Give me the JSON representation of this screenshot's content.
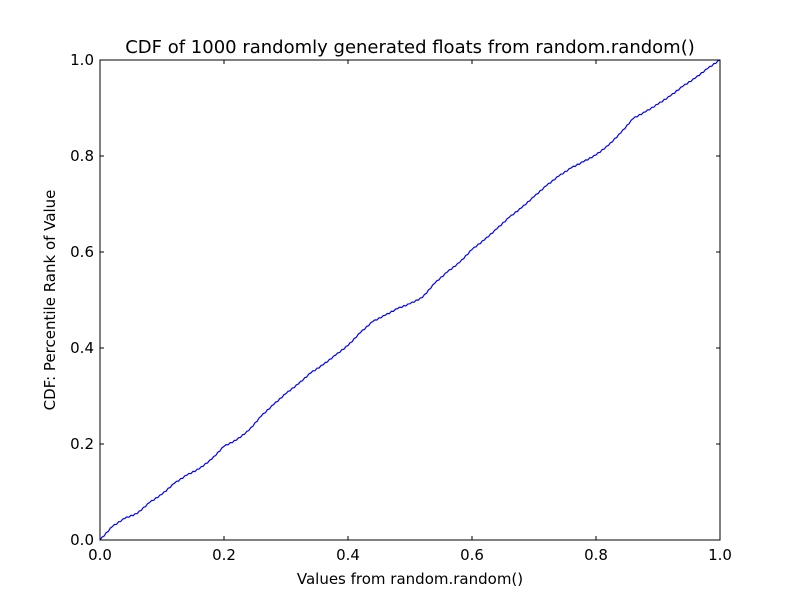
{
  "chart_data": {
    "type": "line",
    "title": "CDF of 1000 randomly generated floats from random.random()",
    "xlabel": "Values from random.random()",
    "ylabel": "CDF: Percentile Rank of Value",
    "xlim": [
      0,
      1
    ],
    "ylim": [
      0,
      1
    ],
    "xticks": [
      "0.0",
      "0.2",
      "0.4",
      "0.6",
      "0.8",
      "1.0"
    ],
    "yticks": [
      "0.0",
      "0.2",
      "0.4",
      "0.6",
      "0.8",
      "1.0"
    ],
    "grid": false,
    "colors": {
      "line": "#0000ff",
      "axes": "#000000",
      "background": "#ffffff"
    },
    "series": [
      {
        "x": [
          0.0,
          0.02,
          0.04,
          0.06,
          0.08,
          0.1,
          0.12,
          0.14,
          0.16,
          0.18,
          0.2,
          0.22,
          0.24,
          0.26,
          0.28,
          0.3,
          0.32,
          0.34,
          0.36,
          0.38,
          0.4,
          0.42,
          0.44,
          0.46,
          0.48,
          0.5,
          0.52,
          0.54,
          0.56,
          0.58,
          0.6,
          0.62,
          0.64,
          0.66,
          0.68,
          0.7,
          0.72,
          0.74,
          0.76,
          0.78,
          0.8,
          0.82,
          0.84,
          0.86,
          0.88,
          0.9,
          0.92,
          0.94,
          0.96,
          0.98,
          1.0
        ],
        "y": [
          0.0,
          0.028,
          0.045,
          0.055,
          0.078,
          0.095,
          0.118,
          0.135,
          0.148,
          0.168,
          0.195,
          0.208,
          0.228,
          0.258,
          0.282,
          0.305,
          0.325,
          0.348,
          0.365,
          0.385,
          0.405,
          0.432,
          0.455,
          0.468,
          0.482,
          0.492,
          0.505,
          0.535,
          0.558,
          0.578,
          0.605,
          0.625,
          0.648,
          0.672,
          0.692,
          0.715,
          0.738,
          0.758,
          0.775,
          0.788,
          0.802,
          0.822,
          0.848,
          0.878,
          0.892,
          0.908,
          0.925,
          0.945,
          0.962,
          0.982,
          1.0
        ]
      }
    ]
  }
}
